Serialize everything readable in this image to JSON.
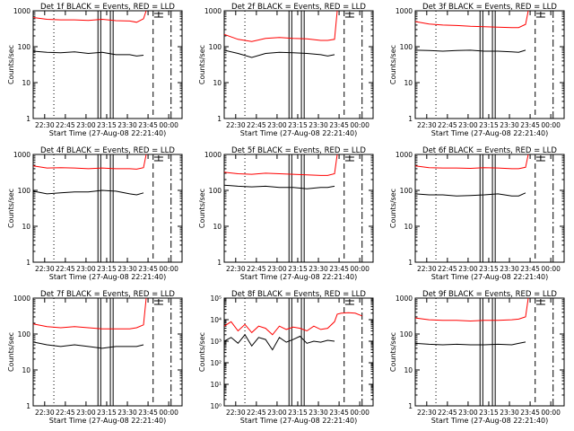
{
  "colors": {
    "background": "#ffffff",
    "events": "#000000",
    "lld": "#ff0000",
    "frame": "#000000"
  },
  "x_tick_labels": [
    "22:30",
    "22:45",
    "23:00",
    "23:15",
    "23:30",
    "23:45",
    "00:00"
  ],
  "x_axis_label": "Start Time (27-Aug-08 22:21:40)",
  "y_axis_label": "Counts/sec",
  "y_tick_labels_linear": [
    "1",
    "10",
    "100",
    "1000"
  ],
  "y_tick_labels_power": [
    "10⁰",
    "10¹",
    "10²",
    "10³",
    "10⁴",
    "10⁵"
  ],
  "chart_data": [
    {
      "type": "line",
      "title": "Det 1f BLACK = Events, RED = LLD",
      "x_start": "22:21:40",
      "xlim_minutes": [
        0,
        108
      ],
      "yscale": "log",
      "ylim": [
        1,
        1000
      ],
      "series": [
        {
          "name": "Events",
          "x": [
            0,
            10,
            20,
            30,
            40,
            50,
            60,
            70,
            75,
            80
          ],
          "y": [
            75,
            70,
            68,
            72,
            65,
            70,
            60,
            60,
            55,
            58
          ]
        },
        {
          "name": "LLD",
          "x": [
            0,
            10,
            20,
            30,
            40,
            50,
            60,
            70,
            75,
            80,
            82
          ],
          "y": [
            650,
            580,
            560,
            560,
            540,
            580,
            530,
            520,
            480,
            600,
            1000
          ]
        }
      ]
    },
    {
      "type": "line",
      "title": "Det 2f BLACK = Events, RED = LLD",
      "x_start": "22:21:40",
      "xlim_minutes": [
        0,
        108
      ],
      "yscale": "log",
      "ylim": [
        1,
        1000
      ],
      "series": [
        {
          "name": "Events",
          "x": [
            0,
            10,
            20,
            30,
            40,
            50,
            60,
            70,
            75,
            80
          ],
          "y": [
            80,
            65,
            50,
            65,
            70,
            68,
            65,
            60,
            55,
            60
          ]
        },
        {
          "name": "LLD",
          "x": [
            0,
            10,
            20,
            30,
            40,
            50,
            60,
            70,
            75,
            80,
            82
          ],
          "y": [
            220,
            160,
            140,
            170,
            180,
            170,
            165,
            150,
            150,
            160,
            1000
          ]
        }
      ]
    },
    {
      "type": "line",
      "title": "Det 3f BLACK = Events, RED = LLD",
      "x_start": "22:21:40",
      "xlim_minutes": [
        0,
        108
      ],
      "yscale": "log",
      "ylim": [
        1,
        1000
      ],
      "series": [
        {
          "name": "Events",
          "x": [
            0,
            10,
            20,
            30,
            40,
            50,
            60,
            70,
            75,
            80
          ],
          "y": [
            80,
            78,
            75,
            78,
            80,
            75,
            75,
            72,
            70,
            80
          ]
        },
        {
          "name": "LLD",
          "x": [
            0,
            10,
            20,
            30,
            40,
            50,
            60,
            70,
            75,
            80,
            82
          ],
          "y": [
            500,
            430,
            400,
            390,
            370,
            360,
            350,
            340,
            340,
            420,
            1000
          ]
        }
      ]
    },
    {
      "type": "line",
      "title": "Det 4f BLACK = Events, RED = LLD",
      "x_start": "22:21:40",
      "xlim_minutes": [
        0,
        108
      ],
      "yscale": "log",
      "ylim": [
        1,
        1000
      ],
      "series": [
        {
          "name": "Events",
          "x": [
            0,
            10,
            20,
            30,
            40,
            50,
            60,
            70,
            75,
            80
          ],
          "y": [
            95,
            80,
            85,
            90,
            90,
            100,
            95,
            80,
            75,
            85
          ]
        },
        {
          "name": "LLD",
          "x": [
            0,
            10,
            20,
            30,
            40,
            50,
            60,
            70,
            75,
            80,
            82
          ],
          "y": [
            480,
            420,
            430,
            420,
            400,
            420,
            400,
            400,
            390,
            430,
            1000
          ]
        }
      ]
    },
    {
      "type": "line",
      "title": "Det 5f BLACK = Events, RED = LLD",
      "x_start": "22:21:40",
      "xlim_minutes": [
        0,
        108
      ],
      "yscale": "log",
      "ylim": [
        1,
        1000
      ],
      "series": [
        {
          "name": "Events",
          "x": [
            0,
            10,
            20,
            30,
            40,
            50,
            60,
            70,
            75,
            80
          ],
          "y": [
            140,
            130,
            125,
            130,
            120,
            120,
            110,
            120,
            120,
            130
          ]
        },
        {
          "name": "LLD",
          "x": [
            0,
            10,
            20,
            30,
            40,
            50,
            60,
            70,
            75,
            80,
            82
          ],
          "y": [
            320,
            290,
            280,
            300,
            290,
            280,
            270,
            260,
            260,
            290,
            1000
          ]
        }
      ]
    },
    {
      "type": "line",
      "title": "Det 6f BLACK = Events, RED = LLD",
      "x_start": "22:21:40",
      "xlim_minutes": [
        0,
        108
      ],
      "yscale": "log",
      "ylim": [
        1,
        1000
      ],
      "series": [
        {
          "name": "Events",
          "x": [
            0,
            10,
            20,
            30,
            40,
            50,
            60,
            70,
            75,
            80
          ],
          "y": [
            80,
            75,
            75,
            70,
            72,
            75,
            80,
            70,
            70,
            85
          ]
        },
        {
          "name": "LLD",
          "x": [
            0,
            10,
            20,
            30,
            40,
            50,
            60,
            70,
            75,
            80,
            82
          ],
          "y": [
            480,
            430,
            420,
            420,
            410,
            430,
            420,
            400,
            400,
            440,
            1000
          ]
        }
      ]
    },
    {
      "type": "line",
      "title": "Det 7f BLACK = Events, RED = LLD",
      "x_start": "22:21:40",
      "xlim_minutes": [
        0,
        108
      ],
      "yscale": "log",
      "ylim": [
        1,
        1000
      ],
      "series": [
        {
          "name": "Events",
          "x": [
            0,
            10,
            20,
            30,
            40,
            50,
            60,
            70,
            75,
            80
          ],
          "y": [
            60,
            50,
            45,
            50,
            45,
            40,
            45,
            45,
            45,
            50
          ]
        },
        {
          "name": "LLD",
          "x": [
            0,
            10,
            20,
            30,
            40,
            50,
            60,
            70,
            75,
            80,
            82
          ],
          "y": [
            190,
            160,
            150,
            160,
            150,
            140,
            140,
            140,
            150,
            180,
            1000
          ]
        }
      ]
    },
    {
      "type": "line",
      "title": "Det 8f BLACK = Events, RED = LLD",
      "x_start": "22:21:40",
      "xlim_minutes": [
        0,
        108
      ],
      "yscale": "log",
      "ylim": [
        1,
        100000
      ],
      "series": [
        {
          "name": "Events",
          "x": [
            0,
            5,
            10,
            15,
            20,
            25,
            30,
            35,
            40,
            45,
            50,
            55,
            60,
            65,
            70,
            75,
            80
          ],
          "y": [
            1000,
            1500,
            800,
            2000,
            600,
            1500,
            1200,
            400,
            1500,
            900,
            1200,
            1700,
            800,
            1000,
            900,
            1100,
            1000
          ]
        },
        {
          "name": "LLD",
          "x": [
            0,
            5,
            10,
            15,
            20,
            25,
            30,
            35,
            40,
            45,
            50,
            55,
            60,
            65,
            70,
            75,
            80,
            82,
            85,
            90,
            95,
            100
          ],
          "y": [
            5000,
            8000,
            3000,
            6000,
            2500,
            5000,
            4000,
            2000,
            5000,
            3500,
            4500,
            4000,
            3000,
            5000,
            3500,
            4000,
            8000,
            18000,
            20000,
            21000,
            20000,
            15000
          ]
        }
      ]
    },
    {
      "type": "line",
      "title": "Det 9f BLACK = Events, RED = LLD",
      "x_start": "22:21:40",
      "xlim_minutes": [
        0,
        108
      ],
      "yscale": "log",
      "ylim": [
        1,
        1000
      ],
      "series": [
        {
          "name": "Events",
          "x": [
            0,
            10,
            20,
            30,
            40,
            50,
            60,
            70,
            75,
            80
          ],
          "y": [
            55,
            52,
            50,
            52,
            50,
            50,
            52,
            50,
            55,
            60
          ]
        },
        {
          "name": "LLD",
          "x": [
            0,
            10,
            20,
            30,
            40,
            50,
            60,
            70,
            75,
            80,
            82
          ],
          "y": [
            280,
            250,
            240,
            240,
            230,
            240,
            240,
            250,
            260,
            300,
            1000
          ]
        }
      ]
    }
  ]
}
